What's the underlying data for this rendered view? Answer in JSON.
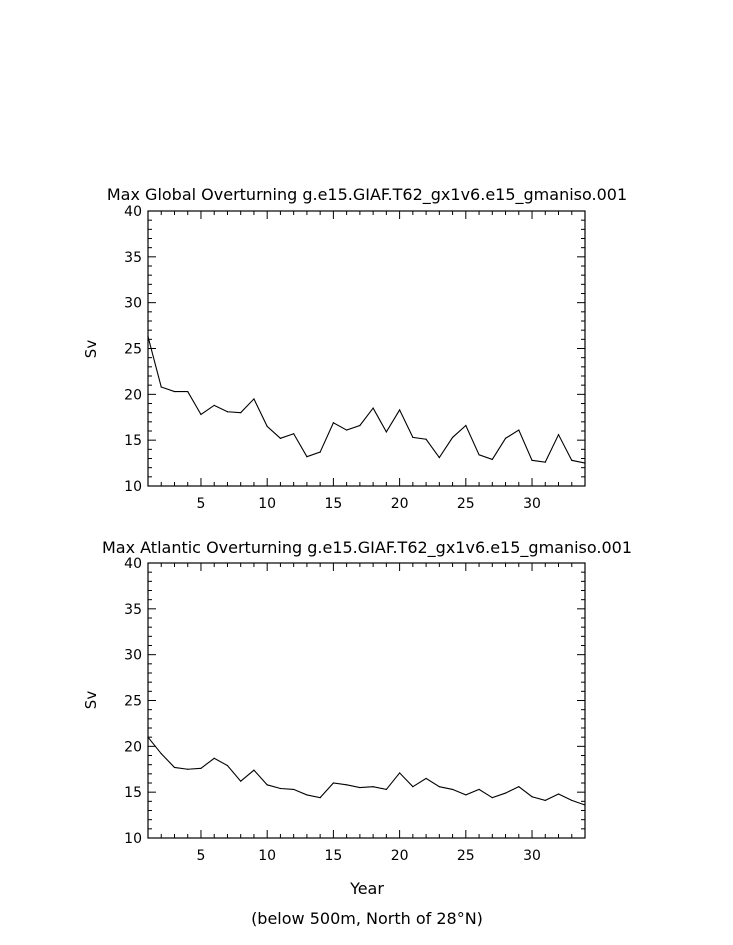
{
  "figure": {
    "xlabel": "Year",
    "footnote": "(below 500m, North of 28°N)"
  },
  "chart_data": [
    {
      "type": "line",
      "title": "Max Global Overturning g.e15.GIAF.T62_gx1v6.e15_gmaniso.001",
      "xlabel": "",
      "ylabel": "Sv",
      "xlim": [
        1,
        34
      ],
      "ylim": [
        10,
        40
      ],
      "xticks": [
        5,
        10,
        15,
        20,
        25,
        30
      ],
      "yticks": [
        10,
        15,
        20,
        25,
        30,
        35,
        40
      ],
      "grid": false,
      "x": [
        1,
        2,
        3,
        4,
        5,
        6,
        7,
        8,
        9,
        10,
        11,
        12,
        13,
        14,
        15,
        16,
        17,
        18,
        19,
        20,
        21,
        22,
        23,
        24,
        25,
        26,
        27,
        28,
        29,
        30,
        31,
        32,
        33,
        34
      ],
      "series": [
        {
          "values": [
            26.3,
            20.8,
            20.3,
            20.3,
            17.8,
            18.8,
            18.1,
            18.0,
            19.5,
            16.5,
            15.2,
            15.7,
            13.2,
            13.7,
            16.9,
            16.1,
            16.6,
            18.5,
            15.9,
            18.3,
            15.3,
            15.1,
            13.1,
            15.3,
            16.6,
            13.4,
            12.9,
            15.2,
            16.1,
            12.8,
            12.6,
            15.6,
            12.8,
            12.5
          ]
        }
      ]
    },
    {
      "type": "line",
      "title": "Max Atlantic Overturning g.e15.GIAF.T62_gx1v6.e15_gmaniso.001",
      "xlabel": "Year",
      "ylabel": "Sv",
      "xlim": [
        1,
        34
      ],
      "ylim": [
        10,
        40
      ],
      "xticks": [
        5,
        10,
        15,
        20,
        25,
        30
      ],
      "yticks": [
        10,
        15,
        20,
        25,
        30,
        35,
        40
      ],
      "grid": false,
      "x": [
        1,
        2,
        3,
        4,
        5,
        6,
        7,
        8,
        9,
        10,
        11,
        12,
        13,
        14,
        15,
        16,
        17,
        18,
        19,
        20,
        21,
        22,
        23,
        24,
        25,
        26,
        27,
        28,
        29,
        30,
        31,
        32,
        33,
        34
      ],
      "series": [
        {
          "values": [
            21.0,
            19.2,
            17.7,
            17.5,
            17.6,
            18.7,
            17.9,
            16.2,
            17.4,
            15.8,
            15.4,
            15.3,
            14.7,
            14.4,
            16.0,
            15.8,
            15.5,
            15.6,
            15.3,
            17.1,
            15.6,
            16.5,
            15.6,
            15.3,
            14.7,
            15.3,
            14.4,
            14.9,
            15.6,
            14.5,
            14.1,
            14.8,
            14.1,
            13.6
          ]
        }
      ]
    }
  ]
}
